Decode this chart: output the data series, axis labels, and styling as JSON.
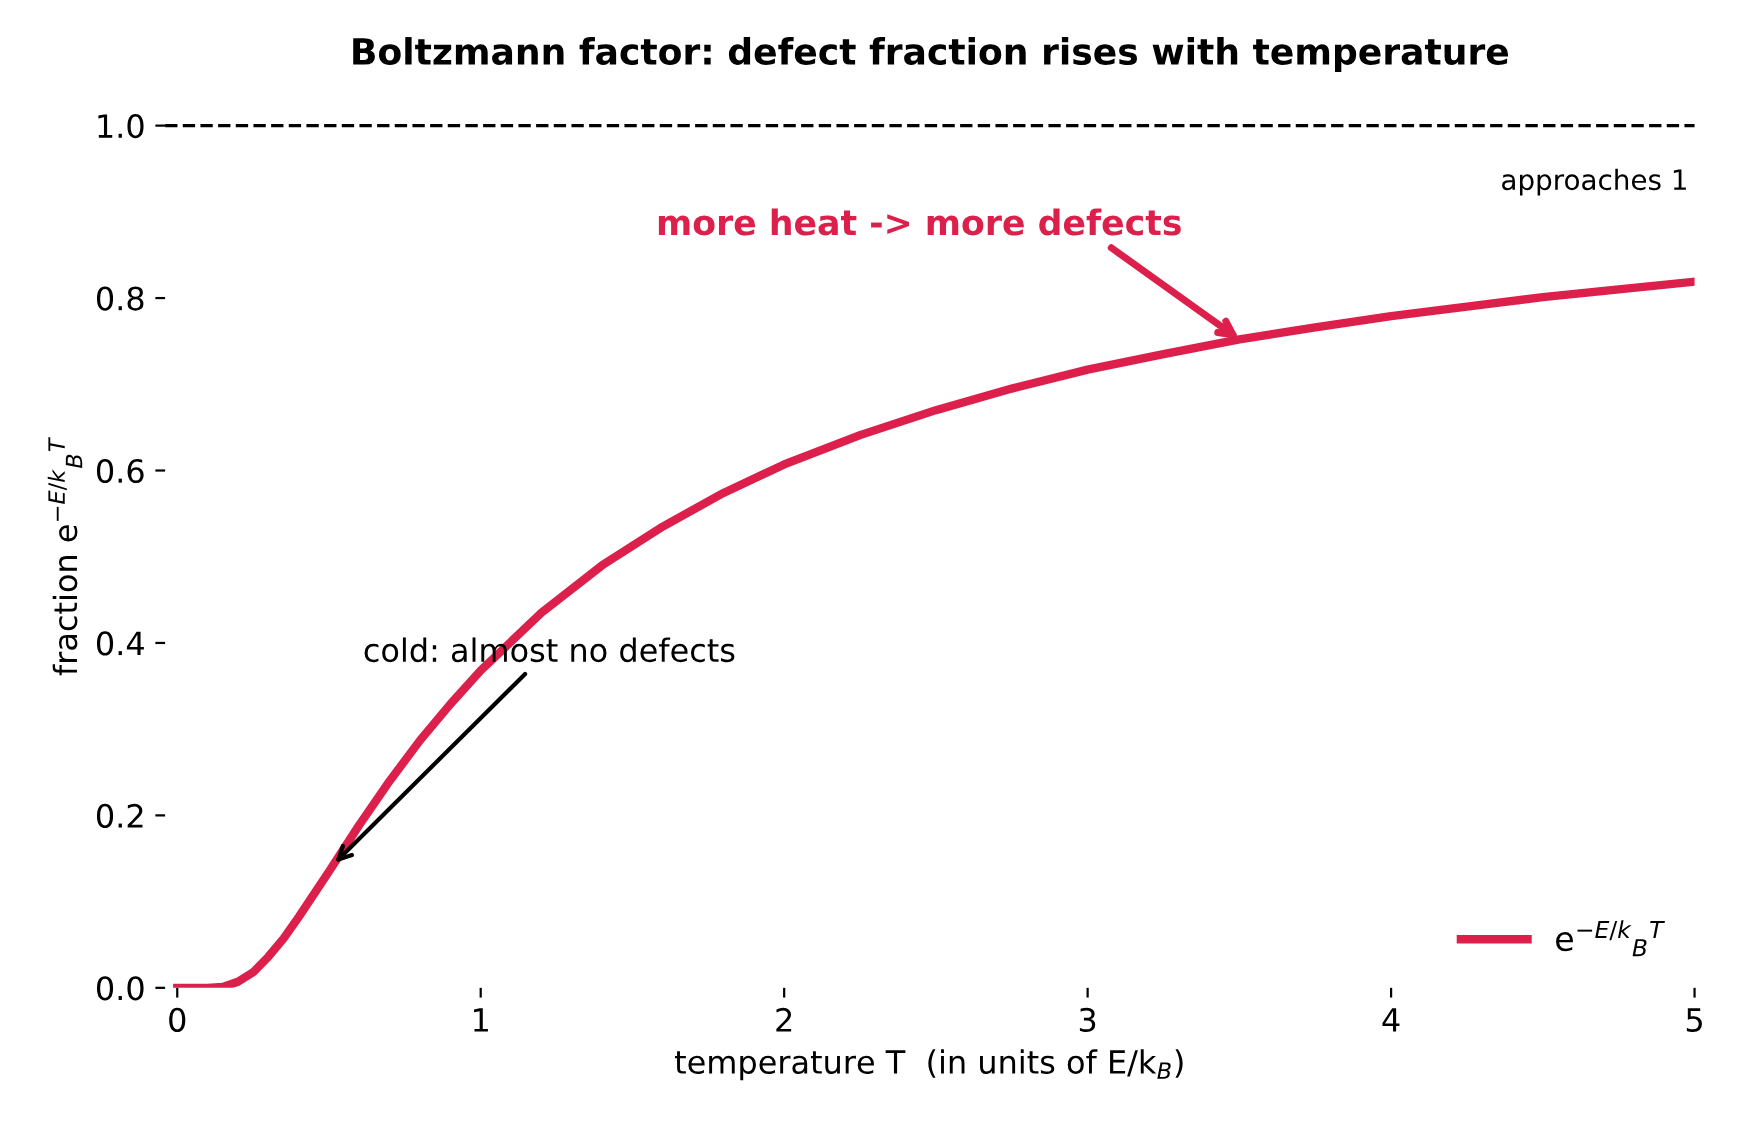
{
  "chart_data": {
    "type": "line",
    "title": "Boltzmann factor: defect fraction rises with temperature",
    "xlabel": "temperature T  (in units of E/k$_{B}$)",
    "ylabel": "fraction e$^{−E/k}$$_{B}$$^{T}$",
    "x": [
      0,
      0.05,
      0.1,
      0.15,
      0.2,
      0.25,
      0.3,
      0.35,
      0.4,
      0.5,
      0.6,
      0.7,
      0.8,
      0.9,
      1,
      1.2,
      1.4,
      1.6,
      1.8,
      2,
      2.25,
      2.5,
      2.75,
      3,
      3.25,
      3.5,
      3.75,
      4,
      4.25,
      4.5,
      4.75,
      5
    ],
    "series": [
      {
        "name": "e$^{−E/k}$$_{B}$$^{T}$",
        "color": "#dc1f4b",
        "values": [
          0,
          0,
          0,
          0.001,
          0.007,
          0.018,
          0.036,
          0.057,
          0.082,
          0.135,
          0.189,
          0.24,
          0.287,
          0.329,
          0.368,
          0.435,
          0.49,
          0.535,
          0.574,
          0.607,
          0.641,
          0.67,
          0.695,
          0.717,
          0.735,
          0.752,
          0.766,
          0.779,
          0.79,
          0.801,
          0.81,
          0.819
        ]
      }
    ],
    "xlim": [
      -0.04,
      5
    ],
    "ylim": [
      0,
      1
    ],
    "xticks": [
      0,
      1,
      2,
      3,
      4,
      5
    ],
    "yticks": [
      {
        "value": 0,
        "label": "0.0"
      },
      {
        "value": 0.2,
        "label": "0.2"
      },
      {
        "value": 0.4,
        "label": "0.4"
      },
      {
        "value": 0.6,
        "label": "0.6"
      },
      {
        "value": 0.8,
        "label": "0.8"
      },
      {
        "value": 1,
        "label": "1.0"
      }
    ],
    "ref_lines": [
      {
        "axis": "y",
        "value": 1,
        "label": "approaches 1",
        "color": "#000000",
        "line_style": "dashed"
      }
    ],
    "annotations": [
      {
        "text": "cold: almost no defects",
        "x": 0.52,
        "y": 0.145
      },
      {
        "text": "more heat -> more defects",
        "x": 3.5,
        "y": 0.752
      }
    ],
    "legend": "bottom right",
    "grid": false,
    "marker": "none",
    "line_style": "solid"
  }
}
